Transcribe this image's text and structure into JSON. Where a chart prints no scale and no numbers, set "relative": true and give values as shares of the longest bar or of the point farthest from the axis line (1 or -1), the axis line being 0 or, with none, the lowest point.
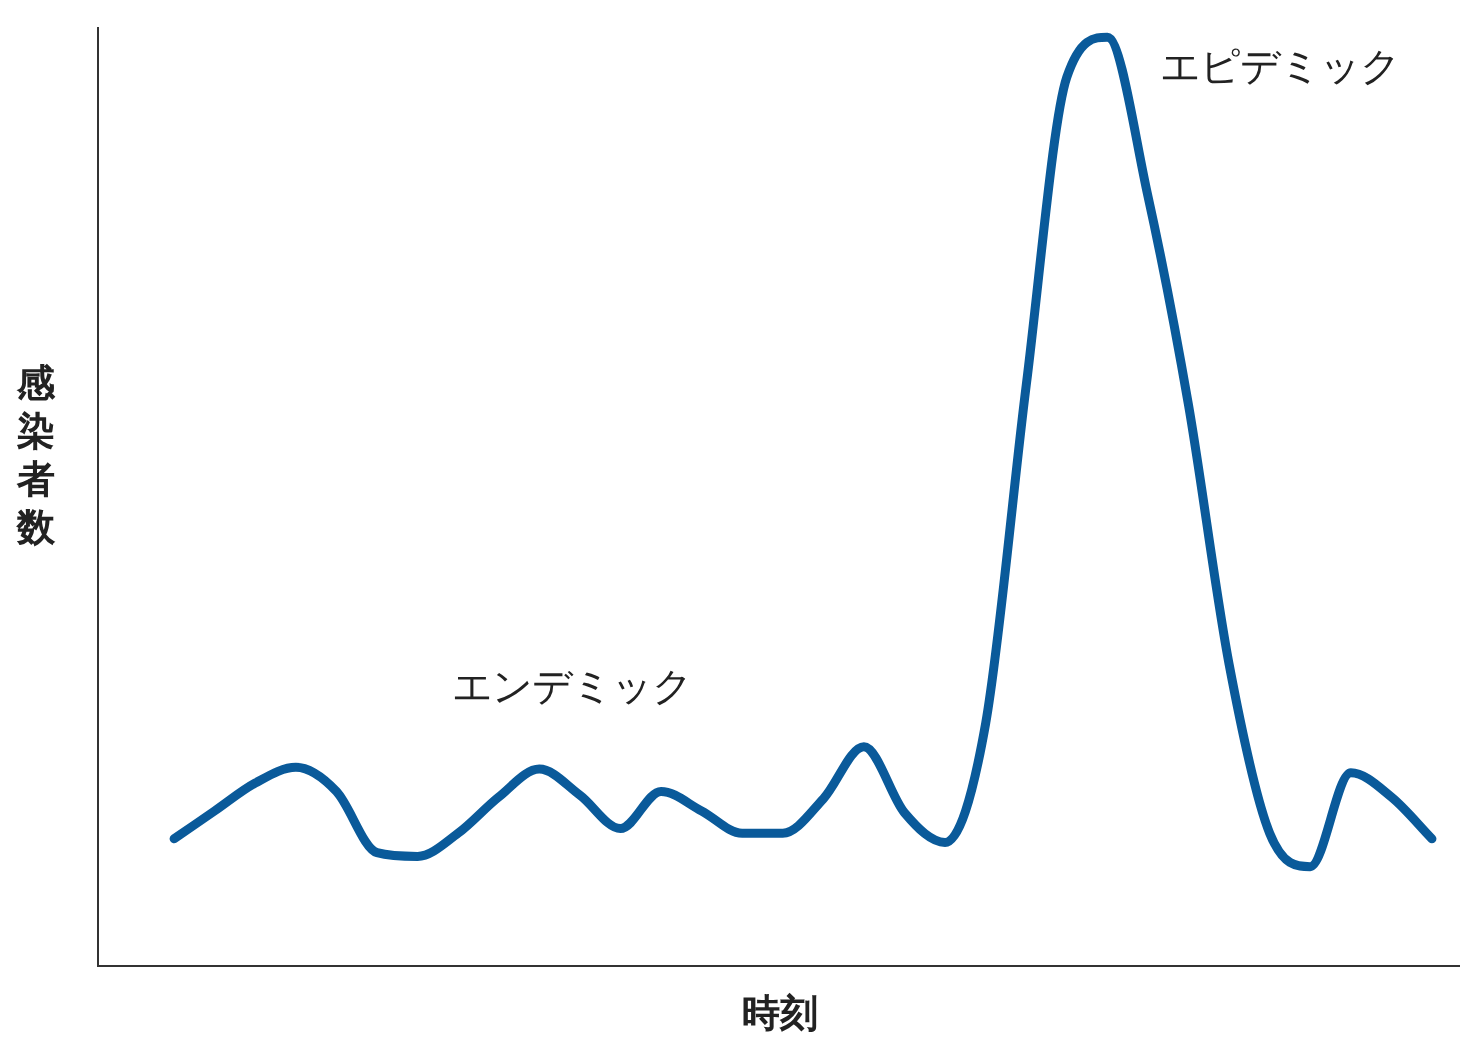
{
  "chart_data": {
    "type": "line",
    "relative": true,
    "xlabel": "時刻",
    "ylabel": "感染者数",
    "annotations": [
      "エンデミック",
      "エピデミック"
    ],
    "categories": [
      null,
      null,
      null,
      null,
      null,
      null,
      null,
      null,
      null,
      null,
      null,
      null,
      null,
      null,
      null,
      null,
      null,
      null,
      null,
      null,
      null,
      null,
      null,
      null,
      null,
      null,
      null,
      null,
      null,
      null,
      null,
      null
    ],
    "series": [
      {
        "color": "#0a5a9a",
        "values": [
          0.137,
          0.167,
          0.197,
          0.214,
          0.188,
          0.122,
          0.118,
          0.143,
          0.182,
          0.212,
          0.184,
          0.148,
          0.188,
          0.167,
          0.143,
          0.143,
          0.18,
          0.236,
          0.165,
          0.133,
          0.261,
          0.625,
          0.957,
          1,
          0.829,
          0.604,
          0.325,
          0.143,
          0.107,
          0.208,
          0.182,
          0.137
        ]
      }
    ],
    "grid": false,
    "legend": false,
    "marker": "none",
    "line_style": "solid"
  }
}
